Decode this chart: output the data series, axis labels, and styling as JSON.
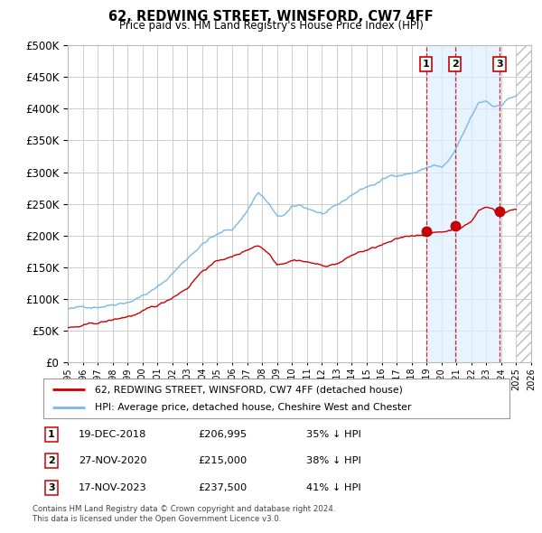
{
  "title": "62, REDWING STREET, WINSFORD, CW7 4FF",
  "subtitle": "Price paid vs. HM Land Registry's House Price Index (HPI)",
  "ylim": [
    0,
    500000
  ],
  "yticks": [
    0,
    50000,
    100000,
    150000,
    200000,
    250000,
    300000,
    350000,
    400000,
    450000,
    500000
  ],
  "hpi_color": "#7ab8e8",
  "price_color": "#cc0000",
  "grid_color": "#cccccc",
  "bg_color": "#ffffff",
  "transactions": [
    {
      "label": "1",
      "date": "19-DEC-2018",
      "price": 206995,
      "pct": "35%",
      "x_year": 2018.97
    },
    {
      "label": "2",
      "date": "27-NOV-2020",
      "price": 215000,
      "pct": "38%",
      "x_year": 2020.91
    },
    {
      "label": "3",
      "date": "17-NOV-2023",
      "price": 237500,
      "pct": "41%",
      "x_year": 2023.88
    }
  ],
  "legend_line1": "62, REDWING STREET, WINSFORD, CW7 4FF (detached house)",
  "legend_line2": "HPI: Average price, detached house, Cheshire West and Chester",
  "footnote1": "Contains HM Land Registry data © Crown copyright and database right 2024.",
  "footnote2": "This data is licensed under the Open Government Licence v3.0.",
  "xmin": 1995,
  "xmax": 2026
}
